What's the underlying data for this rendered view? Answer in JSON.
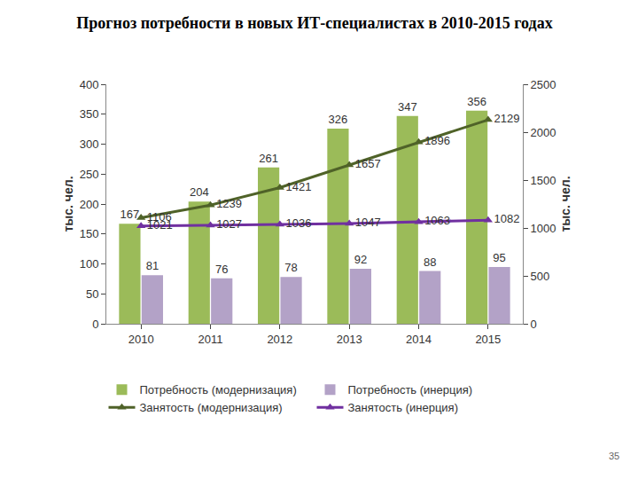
{
  "chart_data": {
    "type": "bar",
    "title": "Прогноз потребности в новых ИТ-специалистах в 2010-2015 годах",
    "categories": [
      "2010",
      "2011",
      "2012",
      "2013",
      "2014",
      "2015"
    ],
    "series": [
      {
        "name": "Потребность (модернизация)",
        "type": "bar",
        "color": "#9bbb59",
        "values": [
          167,
          204,
          261,
          326,
          347,
          356
        ]
      },
      {
        "name": "Потребность (инерция)",
        "type": "bar",
        "color": "#b3a2c7",
        "values": [
          81,
          76,
          78,
          92,
          88,
          95
        ]
      },
      {
        "name": "Занятость (модернизация)",
        "type": "line",
        "axis": "y2",
        "color": "#4f6228",
        "marker": "triangle-up",
        "values": [
          1106,
          1239,
          1421,
          1657,
          1896,
          2129
        ]
      },
      {
        "name": "Занятость (инерция)",
        "type": "line",
        "axis": "y2",
        "color": "#7030a0",
        "marker": "triangle-up",
        "values": [
          1021,
          1027,
          1036,
          1047,
          1063,
          1082
        ]
      }
    ],
    "y_label": "тыс. чел.",
    "y2_label": "тыс. чел.",
    "ylim": [
      0,
      400
    ],
    "yticks": [
      0,
      50,
      100,
      150,
      200,
      250,
      300,
      350,
      400
    ],
    "y2lim": [
      0,
      2500
    ],
    "y2ticks": [
      0,
      500,
      1000,
      1500,
      2000,
      2500
    ],
    "grid": false,
    "legend": "bottom",
    "data_labels": true,
    "annotations": [
      "35"
    ]
  }
}
